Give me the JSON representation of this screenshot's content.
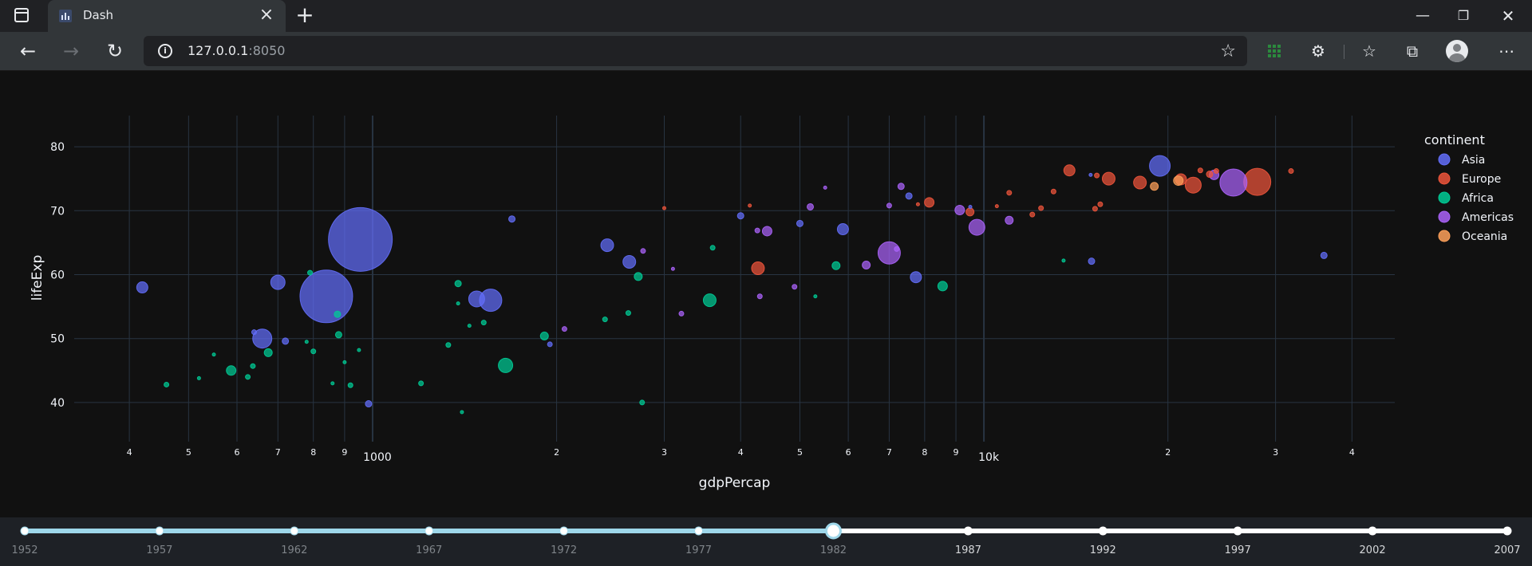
{
  "browser": {
    "tab_title": "Dash",
    "url_host": "127.0.0.1",
    "url_port": ":8050",
    "icons": [
      "tab-strip-icon",
      "dash-favicon",
      "close-icon",
      "plus-icon",
      "minimize-icon",
      "restore-icon",
      "window-close-icon",
      "back-icon",
      "forward-icon",
      "reload-icon",
      "info-icon",
      "favorite-add-icon",
      "extension-grid-icon",
      "puzzle-icon",
      "favorites-icon",
      "collections-icon",
      "profile-icon",
      "more-icon"
    ]
  },
  "chart_data": {
    "type": "scatter",
    "xlabel": "gdpPercap",
    "ylabel": "lifeExp",
    "xscale": "log",
    "xlim": [
      325,
      47000
    ],
    "ylim": [
      36,
      83
    ],
    "grid": true,
    "x_ticks_major": [
      {
        "v": 1000,
        "label": "1000"
      },
      {
        "v": 10000,
        "label": "10k"
      }
    ],
    "x_ticks_minor": [
      {
        "v": 400,
        "label": "4"
      },
      {
        "v": 500,
        "label": "5"
      },
      {
        "v": 600,
        "label": "6"
      },
      {
        "v": 700,
        "label": "7"
      },
      {
        "v": 800,
        "label": "8"
      },
      {
        "v": 900,
        "label": "9"
      },
      {
        "v": 2000,
        "label": "2"
      },
      {
        "v": 3000,
        "label": "3"
      },
      {
        "v": 4000,
        "label": "4"
      },
      {
        "v": 5000,
        "label": "5"
      },
      {
        "v": 6000,
        "label": "6"
      },
      {
        "v": 7000,
        "label": "7"
      },
      {
        "v": 8000,
        "label": "8"
      },
      {
        "v": 9000,
        "label": "9"
      },
      {
        "v": 20000,
        "label": "2"
      },
      {
        "v": 30000,
        "label": "3"
      },
      {
        "v": 40000,
        "label": "4"
      }
    ],
    "y_ticks": [
      40,
      50,
      60,
      70,
      80
    ],
    "legend": {
      "title": "continent",
      "placement": "right"
    },
    "colors": {
      "Asia": "#636efa",
      "Europe": "#ef553b",
      "Africa": "#00cc96",
      "Americas": "#ab63fa",
      "Oceania": "#ffa15a"
    },
    "series": [
      {
        "name": "Asia",
        "points": [
          {
            "x": 955,
            "y": 65.5,
            "s": 40
          },
          {
            "x": 840,
            "y": 56.6,
            "s": 33
          },
          {
            "x": 420,
            "y": 58,
            "s": 7
          },
          {
            "x": 700,
            "y": 58.8,
            "s": 9
          },
          {
            "x": 660,
            "y": 50,
            "s": 12
          },
          {
            "x": 720,
            "y": 49.6,
            "s": 4
          },
          {
            "x": 1560,
            "y": 56,
            "s": 14
          },
          {
            "x": 1480,
            "y": 56.2,
            "s": 10
          },
          {
            "x": 1690,
            "y": 68.7,
            "s": 4
          },
          {
            "x": 2420,
            "y": 64.6,
            "s": 8
          },
          {
            "x": 2630,
            "y": 62,
            "s": 8
          },
          {
            "x": 5880,
            "y": 67.1,
            "s": 7
          },
          {
            "x": 7740,
            "y": 59.6,
            "s": 7
          },
          {
            "x": 19400,
            "y": 77,
            "s": 13
          },
          {
            "x": 36000,
            "y": 63,
            "s": 4
          },
          {
            "x": 15000,
            "y": 62.1,
            "s": 4
          },
          {
            "x": 4000,
            "y": 69.2,
            "s": 4
          },
          {
            "x": 7540,
            "y": 72.3,
            "s": 4
          },
          {
            "x": 5000,
            "y": 68,
            "s": 4
          },
          {
            "x": 1950,
            "y": 49.1,
            "s": 3
          },
          {
            "x": 640,
            "y": 51,
            "s": 3
          },
          {
            "x": 985,
            "y": 39.8,
            "s": 4
          },
          {
            "x": 14950,
            "y": 75.6,
            "s": 2
          },
          {
            "x": 9500,
            "y": 70.6,
            "s": 2
          }
        ]
      },
      {
        "name": "Europe",
        "points": [
          {
            "x": 28000,
            "y": 74.5,
            "s": 17
          },
          {
            "x": 22000,
            "y": 74,
            "s": 10
          },
          {
            "x": 21000,
            "y": 74.9,
            "s": 7
          },
          {
            "x": 18000,
            "y": 74.4,
            "s": 8
          },
          {
            "x": 16000,
            "y": 75,
            "s": 8
          },
          {
            "x": 13800,
            "y": 76.3,
            "s": 7
          },
          {
            "x": 8140,
            "y": 71.3,
            "s": 6
          },
          {
            "x": 9490,
            "y": 69.8,
            "s": 5
          },
          {
            "x": 4270,
            "y": 61,
            "s": 8
          },
          {
            "x": 23400,
            "y": 75.7,
            "s": 4
          },
          {
            "x": 22600,
            "y": 76.3,
            "s": 3
          },
          {
            "x": 24000,
            "y": 76.2,
            "s": 3
          },
          {
            "x": 12400,
            "y": 70.4,
            "s": 3
          },
          {
            "x": 15500,
            "y": 71,
            "s": 3
          },
          {
            "x": 15200,
            "y": 70.3,
            "s": 3
          },
          {
            "x": 13000,
            "y": 73,
            "s": 3
          },
          {
            "x": 12000,
            "y": 69.4,
            "s": 3
          },
          {
            "x": 11000,
            "y": 72.8,
            "s": 3
          },
          {
            "x": 10500,
            "y": 70.7,
            "s": 2
          },
          {
            "x": 31800,
            "y": 76.2,
            "s": 3
          },
          {
            "x": 15300,
            "y": 75.5,
            "s": 3
          },
          {
            "x": 7800,
            "y": 71,
            "s": 2
          },
          {
            "x": 4140,
            "y": 70.8,
            "s": 2
          },
          {
            "x": 3000,
            "y": 70.4,
            "s": 2
          }
        ]
      },
      {
        "name": "Africa",
        "points": [
          {
            "x": 1650,
            "y": 45.8,
            "s": 9
          },
          {
            "x": 3560,
            "y": 56,
            "s": 8
          },
          {
            "x": 8560,
            "y": 58.2,
            "s": 6
          },
          {
            "x": 5730,
            "y": 61.4,
            "s": 5
          },
          {
            "x": 2720,
            "y": 59.7,
            "s": 5
          },
          {
            "x": 1380,
            "y": 58.6,
            "s": 4
          },
          {
            "x": 1910,
            "y": 50.4,
            "s": 5
          },
          {
            "x": 880,
            "y": 50.6,
            "s": 4
          },
          {
            "x": 675,
            "y": 47.8,
            "s": 5
          },
          {
            "x": 587,
            "y": 45,
            "s": 6
          },
          {
            "x": 460,
            "y": 42.8,
            "s": 3
          },
          {
            "x": 876,
            "y": 53.8,
            "s": 4
          },
          {
            "x": 790,
            "y": 60.3,
            "s": 3
          },
          {
            "x": 637,
            "y": 45.7,
            "s": 3
          },
          {
            "x": 625,
            "y": 44,
            "s": 3
          },
          {
            "x": 2400,
            "y": 53,
            "s": 3
          },
          {
            "x": 2620,
            "y": 54,
            "s": 3
          },
          {
            "x": 1200,
            "y": 43,
            "s": 3
          },
          {
            "x": 2760,
            "y": 40,
            "s": 3
          },
          {
            "x": 1330,
            "y": 49,
            "s": 3
          },
          {
            "x": 1440,
            "y": 52,
            "s": 2
          },
          {
            "x": 1520,
            "y": 52.5,
            "s": 3
          },
          {
            "x": 1380,
            "y": 55.5,
            "s": 2
          },
          {
            "x": 860,
            "y": 43,
            "s": 2
          },
          {
            "x": 900,
            "y": 46.3,
            "s": 2
          },
          {
            "x": 950,
            "y": 48.2,
            "s": 2
          },
          {
            "x": 780,
            "y": 49.5,
            "s": 2
          },
          {
            "x": 800,
            "y": 48,
            "s": 3
          },
          {
            "x": 920,
            "y": 42.7,
            "s": 3
          },
          {
            "x": 1400,
            "y": 38.5,
            "s": 2
          },
          {
            "x": 550,
            "y": 47.5,
            "s": 2
          },
          {
            "x": 520,
            "y": 43.8,
            "s": 2
          },
          {
            "x": 3600,
            "y": 64.2,
            "s": 3
          },
          {
            "x": 5300,
            "y": 56.6,
            "s": 2
          },
          {
            "x": 13500,
            "y": 62.2,
            "s": 2
          }
        ]
      },
      {
        "name": "Americas",
        "points": [
          {
            "x": 7000,
            "y": 63.4,
            "s": 14
          },
          {
            "x": 9740,
            "y": 67.4,
            "s": 10
          },
          {
            "x": 25600,
            "y": 74.4,
            "s": 17
          },
          {
            "x": 9130,
            "y": 70.1,
            "s": 6
          },
          {
            "x": 4420,
            "y": 66.8,
            "s": 6
          },
          {
            "x": 6420,
            "y": 61.5,
            "s": 5
          },
          {
            "x": 11000,
            "y": 68.5,
            "s": 5
          },
          {
            "x": 23800,
            "y": 75.6,
            "s": 6
          },
          {
            "x": 5200,
            "y": 70.6,
            "s": 4
          },
          {
            "x": 7320,
            "y": 73.8,
            "s": 4
          },
          {
            "x": 3200,
            "y": 53.9,
            "s": 3
          },
          {
            "x": 4900,
            "y": 58.1,
            "s": 3
          },
          {
            "x": 2060,
            "y": 51.5,
            "s": 3
          },
          {
            "x": 2770,
            "y": 63.7,
            "s": 3
          },
          {
            "x": 4260,
            "y": 66.9,
            "s": 3
          },
          {
            "x": 7000,
            "y": 70.8,
            "s": 3
          },
          {
            "x": 4300,
            "y": 56.6,
            "s": 3
          },
          {
            "x": 7200,
            "y": 64,
            "s": 3
          },
          {
            "x": 5500,
            "y": 73.6,
            "s": 2
          },
          {
            "x": 3100,
            "y": 60.9,
            "s": 2
          }
        ]
      },
      {
        "name": "Oceania",
        "points": [
          {
            "x": 20800,
            "y": 74.7,
            "s": 6
          },
          {
            "x": 19000,
            "y": 73.8,
            "s": 5
          }
        ]
      }
    ]
  },
  "slider": {
    "years": [
      "1952",
      "1957",
      "1962",
      "1967",
      "1972",
      "1977",
      "1982",
      "1987",
      "1992",
      "1997",
      "2002",
      "2007"
    ],
    "selected_index": 6
  }
}
